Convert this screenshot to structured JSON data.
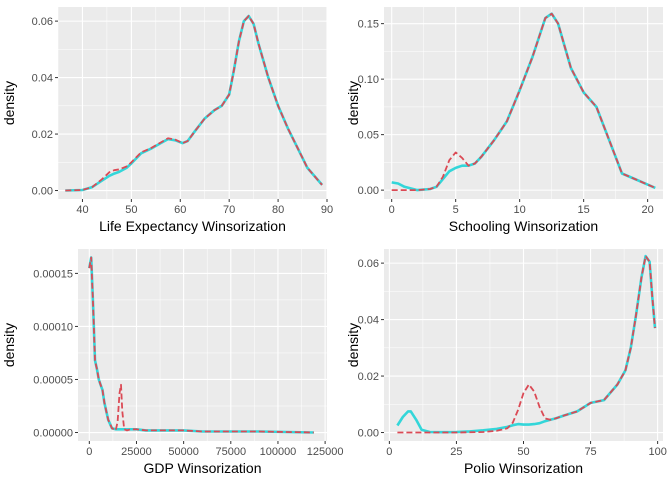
{
  "theme": {
    "panel_bg": "#EBEBEB",
    "grid_major": "#FFFFFF",
    "tick_text": "#4D4D4D",
    "title_text": "#000000",
    "series_colors": {
      "raw": "#DB4A55",
      "winsorized": "#33D6D9"
    }
  },
  "chart_data": [
    {
      "type": "line",
      "xlabel": "Life Expectancy Winsorization",
      "ylabel": "density",
      "xlim": [
        35,
        90
      ],
      "ylim": [
        -0.003,
        0.065
      ],
      "x_ticks": [
        40,
        50,
        60,
        70,
        80,
        90
      ],
      "x_tick_labels": [
        "40",
        "50",
        "60",
        "70",
        "80",
        "90"
      ],
      "y_ticks": [
        0.0,
        0.02,
        0.04,
        0.06
      ],
      "y_tick_labels": [
        "0.00",
        "0.02",
        "0.04",
        "0.06"
      ],
      "grid": true,
      "series": [
        {
          "line_style": "dashed",
          "x": [
            36.5,
            40,
            42,
            44,
            45.5,
            46.5,
            47.5,
            49,
            50,
            52,
            54,
            56,
            57.5,
            59,
            60.5,
            61.5,
            63,
            65,
            67,
            68.5,
            70,
            71,
            72,
            73,
            74,
            75,
            76,
            77,
            78,
            80,
            82,
            84,
            86,
            89
          ],
          "y": [
            0.0,
            0.0002,
            0.0012,
            0.004,
            0.0065,
            0.0072,
            0.0075,
            0.0085,
            0.01,
            0.0135,
            0.015,
            0.017,
            0.0185,
            0.018,
            0.0168,
            0.0175,
            0.021,
            0.0255,
            0.0285,
            0.03,
            0.034,
            0.043,
            0.053,
            0.06,
            0.0618,
            0.059,
            0.052,
            0.046,
            0.04,
            0.03,
            0.022,
            0.015,
            0.008,
            0.002
          ]
        },
        {
          "line_style": "solid",
          "x": [
            36.5,
            40,
            42,
            44,
            45.5,
            46.5,
            47.5,
            49,
            50,
            52,
            54,
            56,
            57.5,
            59,
            60.5,
            61.5,
            63,
            65,
            67,
            68.5,
            70,
            71,
            72,
            73,
            74,
            75,
            76,
            77,
            78,
            80,
            82,
            84,
            86,
            89
          ],
          "y": [
            0.0,
            0.0002,
            0.0012,
            0.0035,
            0.0052,
            0.006,
            0.0066,
            0.008,
            0.0096,
            0.0132,
            0.0148,
            0.0168,
            0.0182,
            0.0178,
            0.0168,
            0.0175,
            0.021,
            0.0255,
            0.0285,
            0.03,
            0.034,
            0.043,
            0.053,
            0.06,
            0.0618,
            0.059,
            0.052,
            0.046,
            0.04,
            0.03,
            0.022,
            0.015,
            0.008,
            0.002
          ]
        }
      ]
    },
    {
      "type": "line",
      "xlabel": "Schooling Winsorization",
      "ylabel": "density",
      "xlim": [
        -0.6,
        21.2
      ],
      "ylim": [
        -0.008,
        0.165
      ],
      "x_ticks": [
        0,
        5,
        10,
        15,
        20
      ],
      "x_tick_labels": [
        "0",
        "5",
        "10",
        "15",
        "20"
      ],
      "y_ticks": [
        0.0,
        0.05,
        0.1,
        0.15
      ],
      "y_tick_labels": [
        "0.00",
        "0.05",
        "0.10",
        "0.15"
      ],
      "grid": true,
      "series": [
        {
          "line_style": "dashed",
          "x": [
            0,
            0.5,
            1,
            2,
            3,
            3.5,
            4,
            4.5,
            5,
            5.5,
            6,
            6.5,
            7,
            8,
            9,
            10,
            11,
            12,
            12.5,
            13,
            14,
            15,
            16,
            17,
            18,
            19,
            20,
            20.6
          ],
          "y": [
            0.0,
            0.0,
            0.0,
            0.0,
            0.001,
            0.003,
            0.012,
            0.027,
            0.034,
            0.029,
            0.022,
            0.024,
            0.03,
            0.045,
            0.062,
            0.09,
            0.12,
            0.155,
            0.159,
            0.15,
            0.11,
            0.088,
            0.075,
            0.045,
            0.015,
            0.01,
            0.005,
            0.002
          ]
        },
        {
          "line_style": "solid",
          "x": [
            0,
            0.5,
            1,
            2,
            3,
            3.5,
            4,
            4.5,
            5,
            5.5,
            6,
            6.5,
            7,
            8,
            9,
            10,
            11,
            12,
            12.5,
            13,
            14,
            15,
            16,
            17,
            18,
            19,
            20,
            20.6
          ],
          "y": [
            0.007,
            0.006,
            0.003,
            0.0,
            0.001,
            0.003,
            0.01,
            0.017,
            0.02,
            0.022,
            0.022,
            0.024,
            0.03,
            0.045,
            0.062,
            0.09,
            0.12,
            0.155,
            0.159,
            0.15,
            0.11,
            0.088,
            0.075,
            0.045,
            0.015,
            0.01,
            0.005,
            0.002
          ]
        }
      ]
    },
    {
      "type": "line",
      "xlabel": "GDP Winsorization",
      "ylabel": "density",
      "xlim": [
        -6000,
        126000
      ],
      "ylim": [
        -8e-06,
        0.000173
      ],
      "x_ticks": [
        0,
        25000,
        50000,
        75000,
        100000,
        125000
      ],
      "x_tick_labels": [
        "0",
        "25000",
        "50000",
        "75000",
        "100000",
        "125000"
      ],
      "y_ticks": [
        0.0,
        5e-05,
        0.0001,
        0.00015
      ],
      "y_tick_labels": [
        "0.00000",
        "0.00005",
        "0.00010",
        "0.00015"
      ],
      "grid": true,
      "series": [
        {
          "line_style": "dashed",
          "x": [
            0,
            1000,
            2000,
            3000,
            4000,
            5000,
            6000,
            7000,
            8000,
            10000,
            12000,
            14000,
            15000,
            16000,
            16800,
            17500,
            18500,
            20000,
            22000,
            25000,
            30000,
            40000,
            50000,
            60000,
            75000,
            90000,
            119000
          ],
          "y": [
            0.000155,
            0.000165,
            0.00012,
            6.8e-05,
            6e-05,
            5e-05,
            4.5e-05,
            4e-05,
            2.8e-05,
            1.2e-05,
            4e-06,
            2e-06,
            1e-05,
            3.7e-05,
            4.5e-05,
            2e-05,
            3e-06,
            2e-06,
            3e-06,
            3e-06,
            2e-06,
            2e-06,
            2e-06,
            1e-06,
            1e-06,
            1e-06,
            0.0
          ]
        },
        {
          "line_style": "solid",
          "x": [
            0,
            1000,
            2000,
            3000,
            4000,
            5000,
            6000,
            7000,
            8000,
            10000,
            12000,
            14000,
            15000,
            16000,
            16800,
            17500,
            18500,
            20000,
            22000,
            25000,
            30000,
            40000,
            50000,
            60000,
            75000,
            90000,
            119000
          ],
          "y": [
            0.000155,
            0.000165,
            0.00012,
            6.8e-05,
            6e-05,
            5e-05,
            4.5e-05,
            4e-05,
            2.8e-05,
            1.2e-05,
            4e-06,
            3e-06,
            3e-06,
            3e-06,
            3e-06,
            3e-06,
            3e-06,
            3e-06,
            3e-06,
            3e-06,
            2e-06,
            2e-06,
            2e-06,
            1e-06,
            1e-06,
            1e-06,
            0.0
          ]
        }
      ]
    },
    {
      "type": "line",
      "xlabel": "Polio Winsorization",
      "ylabel": "density",
      "xlim": [
        -2,
        102
      ],
      "ylim": [
        -0.003,
        0.065
      ],
      "x_ticks": [
        0,
        25,
        50,
        75,
        100
      ],
      "x_tick_labels": [
        "0",
        "25",
        "50",
        "75",
        "100"
      ],
      "y_ticks": [
        0.0,
        0.02,
        0.04,
        0.06
      ],
      "y_tick_labels": [
        "0.00",
        "0.02",
        "0.04",
        "0.06"
      ],
      "grid": true,
      "series": [
        {
          "line_style": "dashed",
          "x": [
            3,
            8,
            15,
            25,
            35,
            40,
            44,
            46,
            48,
            50,
            52,
            54,
            56,
            58,
            60,
            62,
            65,
            70,
            75,
            80,
            85,
            88,
            90,
            92,
            94,
            95.5,
            97,
            98,
            99
          ],
          "y": [
            0.0,
            0.0,
            0.0,
            0.0,
            0.0002,
            0.0006,
            0.0015,
            0.0035,
            0.008,
            0.014,
            0.017,
            0.0145,
            0.009,
            0.005,
            0.0045,
            0.005,
            0.006,
            0.0075,
            0.0105,
            0.0115,
            0.017,
            0.022,
            0.03,
            0.042,
            0.055,
            0.0625,
            0.0605,
            0.048,
            0.037
          ]
        },
        {
          "line_style": "solid",
          "x": [
            3,
            5,
            7,
            8,
            10,
            12,
            15,
            20,
            25,
            30,
            35,
            40,
            44,
            46,
            48,
            50,
            52,
            54,
            56,
            58,
            60,
            62,
            65,
            70,
            75,
            80,
            85,
            88,
            90,
            92,
            94,
            95.5,
            97,
            98,
            99
          ],
          "y": [
            0.0025,
            0.0055,
            0.0075,
            0.0075,
            0.0045,
            0.001,
            0.0002,
            0.0001,
            0.0002,
            0.0004,
            0.0008,
            0.0013,
            0.002,
            0.0026,
            0.003,
            0.0028,
            0.0028,
            0.003,
            0.0033,
            0.004,
            0.0045,
            0.005,
            0.006,
            0.0075,
            0.0105,
            0.0115,
            0.017,
            0.022,
            0.03,
            0.042,
            0.055,
            0.0625,
            0.0605,
            0.048,
            0.037
          ]
        }
      ]
    }
  ]
}
